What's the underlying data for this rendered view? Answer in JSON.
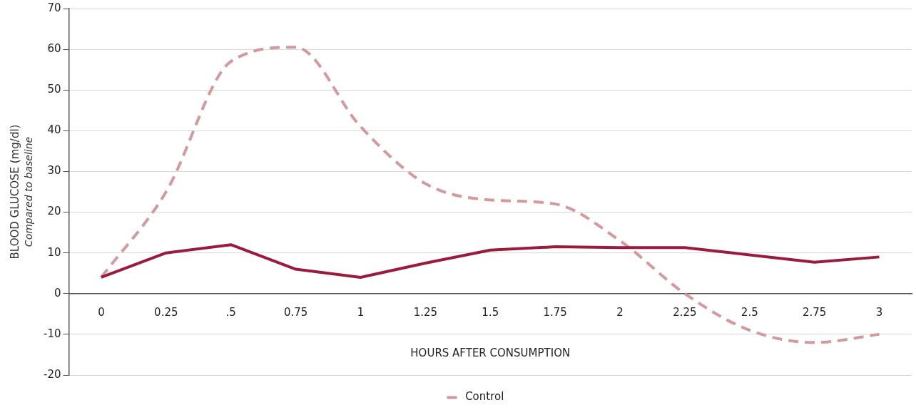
{
  "chart_data": {
    "type": "line",
    "xlabel": "HOURS AFTER CONSUMPTION",
    "ylabel": "BLOOD GLUCOSE (mg/dl)",
    "annotations": [
      "Compared to baseline"
    ],
    "categories": [
      "0",
      "0.25",
      ".5",
      "0.75",
      "1",
      "1.25",
      "1.5",
      "1.75",
      "2",
      "2.25",
      "2.5",
      "2.75",
      "3"
    ],
    "series": [
      {
        "color": "#9b1b3b",
        "line_style": "solid",
        "values": [
          4,
          10,
          12,
          6,
          4,
          7.5,
          10.7,
          11.5,
          11.3,
          11.3,
          9.5,
          7.7,
          9
        ]
      },
      {
        "name": "Control",
        "color": "#d4999c",
        "line_style": "dashed",
        "values": [
          4,
          25,
          57,
          60.5,
          41,
          27,
          23,
          22,
          13,
          0,
          -9,
          -12,
          -10
        ]
      }
    ],
    "ylim": [
      -20,
      70
    ],
    "yticks": [
      -20,
      -10,
      0,
      10,
      20,
      30,
      40,
      50,
      60,
      70
    ],
    "grid": "y",
    "legend": "bottom",
    "marker": "none"
  }
}
